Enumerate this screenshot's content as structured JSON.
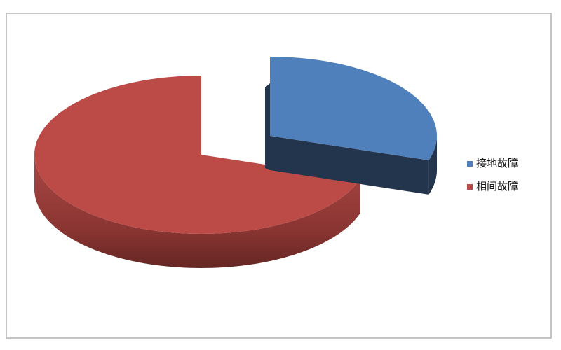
{
  "chart_data": {
    "type": "pie",
    "is_3d": true,
    "title": "",
    "legend_position": "right",
    "direction": "clockwise",
    "start_angle_deg": 90,
    "categories": [
      "接地故障",
      "相间故障"
    ],
    "values": [
      30,
      70
    ],
    "unit": "percent",
    "slices": [
      {
        "id": "ground-fault",
        "label": "接地故障",
        "value": 30,
        "color": "#4F80BC",
        "side_colors": [
          "#23344D"
        ],
        "exploded": true
      },
      {
        "id": "phase-to-phase-fault",
        "label": "相间故障",
        "value": 70,
        "color": "#BC4B48",
        "side_colors": [
          "#A34340",
          "#8A3532",
          "#5E2421"
        ],
        "exploded": false
      }
    ]
  },
  "frame": {
    "border_color": "#C4C4C4",
    "background": "#FFFFFF"
  },
  "legend": {
    "items": [
      {
        "label": "接地故障",
        "marker_color": "#4F80BC"
      },
      {
        "label": "相间故障",
        "marker_color": "#BC4B48"
      }
    ]
  }
}
